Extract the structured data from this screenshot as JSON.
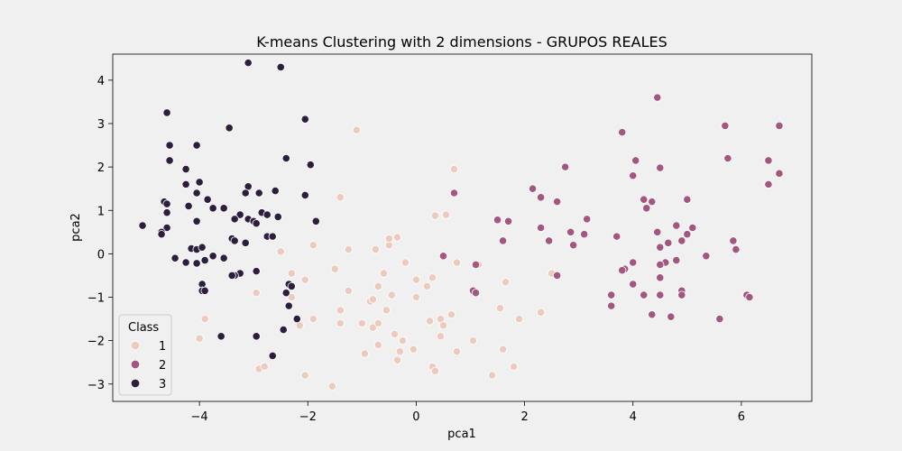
{
  "chart_data": {
    "type": "scatter",
    "title": "K-means Clustering with 2 dimensions - GRUPOS REALES",
    "xlabel": "pca1",
    "ylabel": "pca2",
    "xlim": [
      -5.6,
      7.3
    ],
    "ylim": [
      -3.4,
      4.6
    ],
    "xticks": [
      -4,
      -2,
      0,
      2,
      4,
      6
    ],
    "yticks": [
      -3,
      -2,
      -1,
      0,
      1,
      2,
      3,
      4
    ],
    "xtick_labels": [
      "−4",
      "−2",
      "0",
      "2",
      "4",
      "6"
    ],
    "ytick_labels": [
      "−3",
      "−2",
      "−1",
      "0",
      "1",
      "2",
      "3",
      "4"
    ],
    "grid": false,
    "legend": {
      "title": "Class",
      "position": "lower-left",
      "entries": [
        "1",
        "2",
        "3"
      ]
    },
    "series": [
      {
        "name": "1",
        "color": "#eccbbe",
        "points": [
          [
            -1.1,
            2.85
          ],
          [
            0.7,
            1.95
          ],
          [
            -1.4,
            1.3
          ],
          [
            -1.9,
            0.2
          ],
          [
            -1.25,
            0.1
          ],
          [
            -0.75,
            0.1
          ],
          [
            -0.5,
            0.2
          ],
          [
            -0.5,
            0.35
          ],
          [
            -0.35,
            0.38
          ],
          [
            0.55,
            0.9
          ],
          [
            0.35,
            0.88
          ],
          [
            -2.5,
            0.05
          ],
          [
            -2.3,
            -0.45
          ],
          [
            -2.05,
            -0.6
          ],
          [
            -1.5,
            -0.35
          ],
          [
            -1.25,
            -0.85
          ],
          [
            -0.6,
            -0.45
          ],
          [
            -0.2,
            -0.2
          ],
          [
            0.0,
            -0.6
          ],
          [
            0.2,
            -0.75
          ],
          [
            0.3,
            -0.55
          ],
          [
            0.75,
            -0.2
          ],
          [
            -2.95,
            -0.9
          ],
          [
            -2.3,
            -1.0
          ],
          [
            -1.4,
            -1.3
          ],
          [
            -1.4,
            -1.6
          ],
          [
            -1.0,
            -1.6
          ],
          [
            -0.85,
            -1.1
          ],
          [
            -0.8,
            -1.05
          ],
          [
            -0.7,
            -0.75
          ],
          [
            -0.45,
            -0.95
          ],
          [
            -0.55,
            -1.3
          ],
          [
            0.0,
            -1.0
          ],
          [
            -2.2,
            -1.5
          ],
          [
            -2.15,
            -1.65
          ],
          [
            -1.9,
            -1.5
          ],
          [
            -0.8,
            -1.7
          ],
          [
            -0.7,
            -1.6
          ],
          [
            -0.4,
            -1.85
          ],
          [
            0.25,
            -1.55
          ],
          [
            0.45,
            -1.5
          ],
          [
            0.5,
            -1.65
          ],
          [
            0.45,
            -1.9
          ],
          [
            0.65,
            -1.4
          ],
          [
            -3.9,
            -1.5
          ],
          [
            -4.0,
            -1.95
          ],
          [
            -0.7,
            -2.1
          ],
          [
            -0.25,
            -2.0
          ],
          [
            -0.3,
            -2.25
          ],
          [
            -0.05,
            -2.2
          ],
          [
            0.75,
            -2.25
          ],
          [
            1.05,
            -2.0
          ],
          [
            1.6,
            -2.2
          ],
          [
            1.9,
            -1.5
          ],
          [
            2.3,
            -1.35
          ],
          [
            -2.9,
            -2.65
          ],
          [
            -2.8,
            -2.6
          ],
          [
            -2.05,
            -2.8
          ],
          [
            -0.95,
            -2.3
          ],
          [
            -0.35,
            -2.45
          ],
          [
            0.3,
            -2.6
          ],
          [
            0.35,
            -2.7
          ],
          [
            1.4,
            -2.8
          ],
          [
            1.8,
            -2.6
          ],
          [
            -1.55,
            -3.05
          ],
          [
            1.55,
            -1.25
          ],
          [
            1.65,
            -0.65
          ],
          [
            2.5,
            -0.45
          ],
          [
            1.15,
            -0.25
          ]
        ]
      },
      {
        "name": "2",
        "color": "#a3567f",
        "points": [
          [
            4.45,
            3.6
          ],
          [
            5.7,
            2.95
          ],
          [
            6.7,
            2.95
          ],
          [
            3.8,
            2.8
          ],
          [
            5.75,
            2.2
          ],
          [
            6.5,
            2.15
          ],
          [
            4.05,
            2.15
          ],
          [
            2.75,
            2.0
          ],
          [
            4.5,
            1.98
          ],
          [
            6.7,
            1.85
          ],
          [
            4.0,
            1.8
          ],
          [
            6.5,
            1.6
          ],
          [
            2.15,
            1.5
          ],
          [
            2.3,
            1.3
          ],
          [
            4.2,
            1.25
          ],
          [
            4.35,
            1.2
          ],
          [
            5.0,
            1.25
          ],
          [
            2.6,
            1.2
          ],
          [
            0.7,
            1.4
          ],
          [
            4.25,
            1.05
          ],
          [
            1.5,
            0.78
          ],
          [
            1.7,
            0.75
          ],
          [
            3.15,
            0.8
          ],
          [
            2.3,
            0.6
          ],
          [
            5.1,
            0.6
          ],
          [
            4.8,
            0.65
          ],
          [
            4.45,
            0.5
          ],
          [
            2.85,
            0.5
          ],
          [
            3.1,
            0.45
          ],
          [
            5.0,
            0.45
          ],
          [
            3.7,
            0.4
          ],
          [
            2.45,
            0.3
          ],
          [
            1.6,
            0.3
          ],
          [
            4.65,
            0.25
          ],
          [
            4.9,
            0.3
          ],
          [
            5.85,
            0.3
          ],
          [
            2.9,
            0.2
          ],
          [
            4.5,
            0.15
          ],
          [
            5.9,
            0.1
          ],
          [
            0.5,
            -0.05
          ],
          [
            5.35,
            -0.05
          ],
          [
            4.8,
            -0.15
          ],
          [
            4.6,
            -0.2
          ],
          [
            4.5,
            -0.25
          ],
          [
            4.0,
            -0.2
          ],
          [
            3.85,
            -0.35
          ],
          [
            3.8,
            -0.38
          ],
          [
            1.1,
            -0.25
          ],
          [
            4.0,
            -0.7
          ],
          [
            4.5,
            -0.55
          ],
          [
            4.9,
            -0.85
          ],
          [
            4.2,
            -0.95
          ],
          [
            4.5,
            -0.95
          ],
          [
            2.6,
            -0.5
          ],
          [
            3.6,
            -0.95
          ],
          [
            3.6,
            -1.2
          ],
          [
            1.05,
            -0.85
          ],
          [
            1.1,
            -0.9
          ],
          [
            6.1,
            -0.95
          ],
          [
            6.15,
            -1.0
          ],
          [
            4.9,
            -0.95
          ],
          [
            4.35,
            -1.4
          ],
          [
            4.7,
            -1.45
          ],
          [
            5.6,
            -1.5
          ]
        ]
      },
      {
        "name": "3",
        "color": "#2d1e3e",
        "points": [
          [
            -3.1,
            4.4
          ],
          [
            -2.5,
            4.3
          ],
          [
            -4.6,
            3.25
          ],
          [
            -2.05,
            3.1
          ],
          [
            -3.45,
            2.9
          ],
          [
            -4.55,
            2.5
          ],
          [
            -4.05,
            2.5
          ],
          [
            -2.4,
            2.2
          ],
          [
            -4.55,
            2.15
          ],
          [
            -1.95,
            2.05
          ],
          [
            -4.25,
            1.95
          ],
          [
            -4.0,
            1.65
          ],
          [
            -4.25,
            1.6
          ],
          [
            -3.1,
            1.55
          ],
          [
            -3.15,
            1.4
          ],
          [
            -2.9,
            1.4
          ],
          [
            -2.6,
            1.45
          ],
          [
            -4.05,
            1.4
          ],
          [
            -2.05,
            1.35
          ],
          [
            -3.85,
            1.25
          ],
          [
            -4.65,
            1.2
          ],
          [
            -4.6,
            1.15
          ],
          [
            -4.2,
            1.1
          ],
          [
            -3.55,
            1.05
          ],
          [
            -3.75,
            1.05
          ],
          [
            -4.6,
            0.95
          ],
          [
            -2.85,
            0.95
          ],
          [
            -2.75,
            0.9
          ],
          [
            -3.25,
            0.9
          ],
          [
            -3.1,
            0.8
          ],
          [
            -3.35,
            0.8
          ],
          [
            -3.0,
            0.75
          ],
          [
            -2.55,
            0.85
          ],
          [
            -2.95,
            0.7
          ],
          [
            -1.85,
            0.75
          ],
          [
            -4.05,
            0.75
          ],
          [
            -5.05,
            0.65
          ],
          [
            -4.6,
            0.6
          ],
          [
            -4.7,
            0.5
          ],
          [
            -2.75,
            0.4
          ],
          [
            -2.65,
            0.4
          ],
          [
            -3.4,
            0.35
          ],
          [
            -3.35,
            0.3
          ],
          [
            -3.15,
            0.25
          ],
          [
            -4.15,
            0.12
          ],
          [
            -4.05,
            0.1
          ],
          [
            -3.95,
            0.15
          ],
          [
            -3.75,
            -0.05
          ],
          [
            -3.55,
            -0.1
          ],
          [
            -4.45,
            -0.1
          ],
          [
            -4.25,
            -0.2
          ],
          [
            -3.9,
            -0.15
          ],
          [
            -4.05,
            -0.22
          ],
          [
            -2.95,
            -0.4
          ],
          [
            -3.25,
            -0.45
          ],
          [
            -3.35,
            -0.5
          ],
          [
            -3.4,
            -0.5
          ],
          [
            -2.35,
            -0.7
          ],
          [
            -2.3,
            -0.75
          ],
          [
            -3.95,
            -0.7
          ],
          [
            -3.95,
            -0.85
          ],
          [
            -3.9,
            -0.85
          ],
          [
            -2.4,
            -0.9
          ],
          [
            -2.35,
            -1.2
          ],
          [
            -2.2,
            -1.5
          ],
          [
            -2.45,
            -1.75
          ],
          [
            -3.6,
            -1.9
          ],
          [
            -2.95,
            -1.9
          ],
          [
            -2.65,
            -2.35
          ],
          [
            -4.7,
            0.45
          ]
        ]
      }
    ]
  }
}
